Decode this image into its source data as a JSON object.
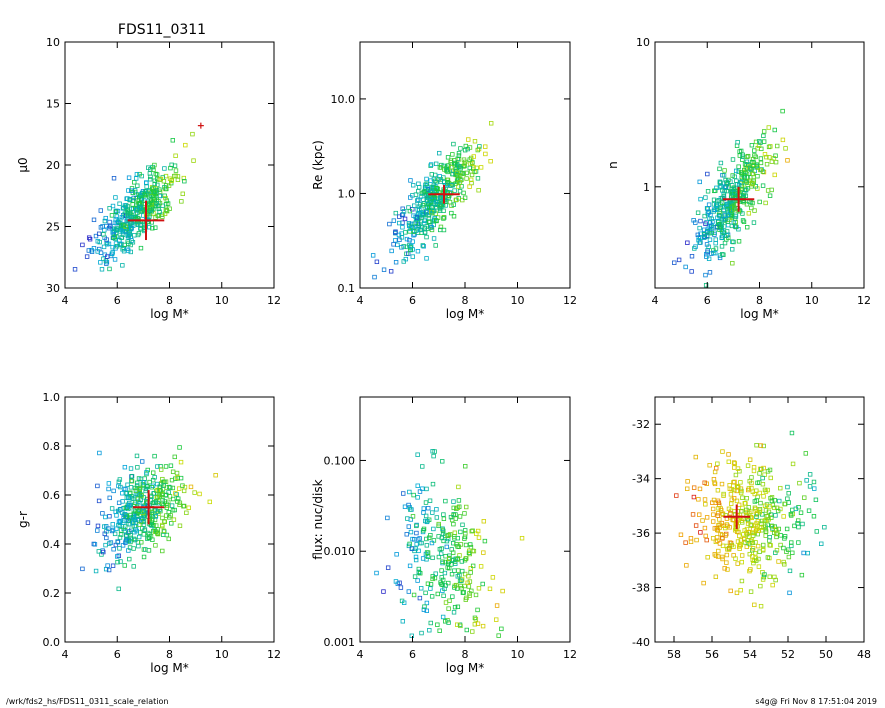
{
  "figure": {
    "title": "FDS11_0311",
    "footer_left": "/wrk/fds2_hs/FDS11_0311_scale_relation",
    "footer_right": "s4g@  Fri Nov  8 17:51:04 2019"
  },
  "colors": {
    "marker": "#d01010",
    "frame": "#000000"
  },
  "chart_data": [
    {
      "type": "scatter",
      "xlabel": "log M*",
      "ylabel": "μ0",
      "xlim": [
        4,
        12
      ],
      "ylim": [
        30,
        10
      ],
      "y_inverted": true,
      "xticks": [
        4,
        6,
        8,
        10,
        12
      ],
      "yticks": [
        10,
        15,
        20,
        25,
        30
      ],
      "center": {
        "x": 7.1,
        "y": 24.5,
        "xerr": 0.7,
        "yerr": 1.6
      },
      "extra_marker": {
        "x": 9.2,
        "y": 16.8
      },
      "cloud": {
        "x0": 6.7,
        "y0": 24.0,
        "slope": -1.8,
        "sx": 0.8,
        "sy": 1.3,
        "n": 420
      }
    },
    {
      "type": "scatter",
      "xlabel": "log M*",
      "ylabel": "Re (kpc)",
      "xlim": [
        4,
        12
      ],
      "ylim": [
        0.1,
        40
      ],
      "log_y": true,
      "xticks": [
        4,
        6,
        8,
        10,
        12
      ],
      "yticks": [
        0.1,
        1.0,
        10.0
      ],
      "yticklabels": [
        "0.1",
        "1.0",
        "10.0"
      ],
      "center": {
        "x": 7.2,
        "y": 0.98,
        "xerr": 0.6,
        "yerr": 0.25
      },
      "cloud": {
        "x0": 6.9,
        "y0": -0.05,
        "slope": 0.28,
        "sx": 0.8,
        "sy": 0.17,
        "n": 420
      }
    },
    {
      "type": "scatter",
      "xlabel": "log M*",
      "ylabel": "n",
      "xlim": [
        4,
        12
      ],
      "ylim": [
        0.2,
        10
      ],
      "log_y": true,
      "xticks": [
        4,
        6,
        8,
        10,
        12
      ],
      "yticks": [
        1,
        10
      ],
      "yticklabels": [
        "1",
        "10"
      ],
      "center": {
        "x": 7.2,
        "y": 0.82,
        "xerr": 0.6,
        "yerr": 0.18
      },
      "cloud": {
        "x0": 6.9,
        "y0": -0.1,
        "slope": 0.2,
        "sx": 0.8,
        "sy": 0.13,
        "n": 420
      }
    },
    {
      "type": "scatter",
      "xlabel": "log M*",
      "ylabel": "g-r",
      "xlim": [
        4,
        12
      ],
      "ylim": [
        0.0,
        1.0
      ],
      "xticks": [
        4,
        6,
        8,
        10,
        12
      ],
      "yticks": [
        0.0,
        0.2,
        0.4,
        0.6,
        0.8,
        1.0
      ],
      "yticklabels": [
        "0.0",
        "0.2",
        "0.4",
        "0.6",
        "0.8",
        "1.0"
      ],
      "center": {
        "x": 7.2,
        "y": 0.55,
        "xerr": 0.6,
        "yerr": 0.07
      },
      "cloud": {
        "x0": 6.9,
        "y0": 0.53,
        "slope": 0.05,
        "sx": 0.8,
        "sy": 0.09,
        "n": 420
      }
    },
    {
      "type": "scatter",
      "xlabel": "log M*",
      "ylabel": "flux: nuc/disk",
      "xlim": [
        4,
        12
      ],
      "ylim": [
        0.001,
        0.5
      ],
      "log_y": true,
      "xticks": [
        4,
        6,
        8,
        10,
        12
      ],
      "yticks": [
        0.001,
        0.01,
        0.1
      ],
      "yticklabels": [
        "0.001",
        "0.010",
        "0.100"
      ],
      "cloud": {
        "x0": 7.2,
        "y0": -2.1,
        "slope": -0.1,
        "sx": 0.9,
        "sy": 0.45,
        "n": 300
      }
    },
    {
      "type": "scatter",
      "xlabel": "",
      "ylabel": "",
      "xlim": [
        59,
        48
      ],
      "ylim": [
        -40,
        -31
      ],
      "x_inverted": true,
      "xticks": [
        58,
        56,
        54,
        52,
        50,
        48
      ],
      "yticks": [
        -40,
        -38,
        -36,
        -34,
        -32
      ],
      "center": {
        "x": 54.7,
        "y": -35.4,
        "xerr": 0.7,
        "yerr": 0.45
      },
      "cloud": {
        "x0": 54.0,
        "y0": -35.6,
        "slope": 0.0,
        "sx": 1.4,
        "sy": 1.1,
        "n": 420
      }
    }
  ]
}
